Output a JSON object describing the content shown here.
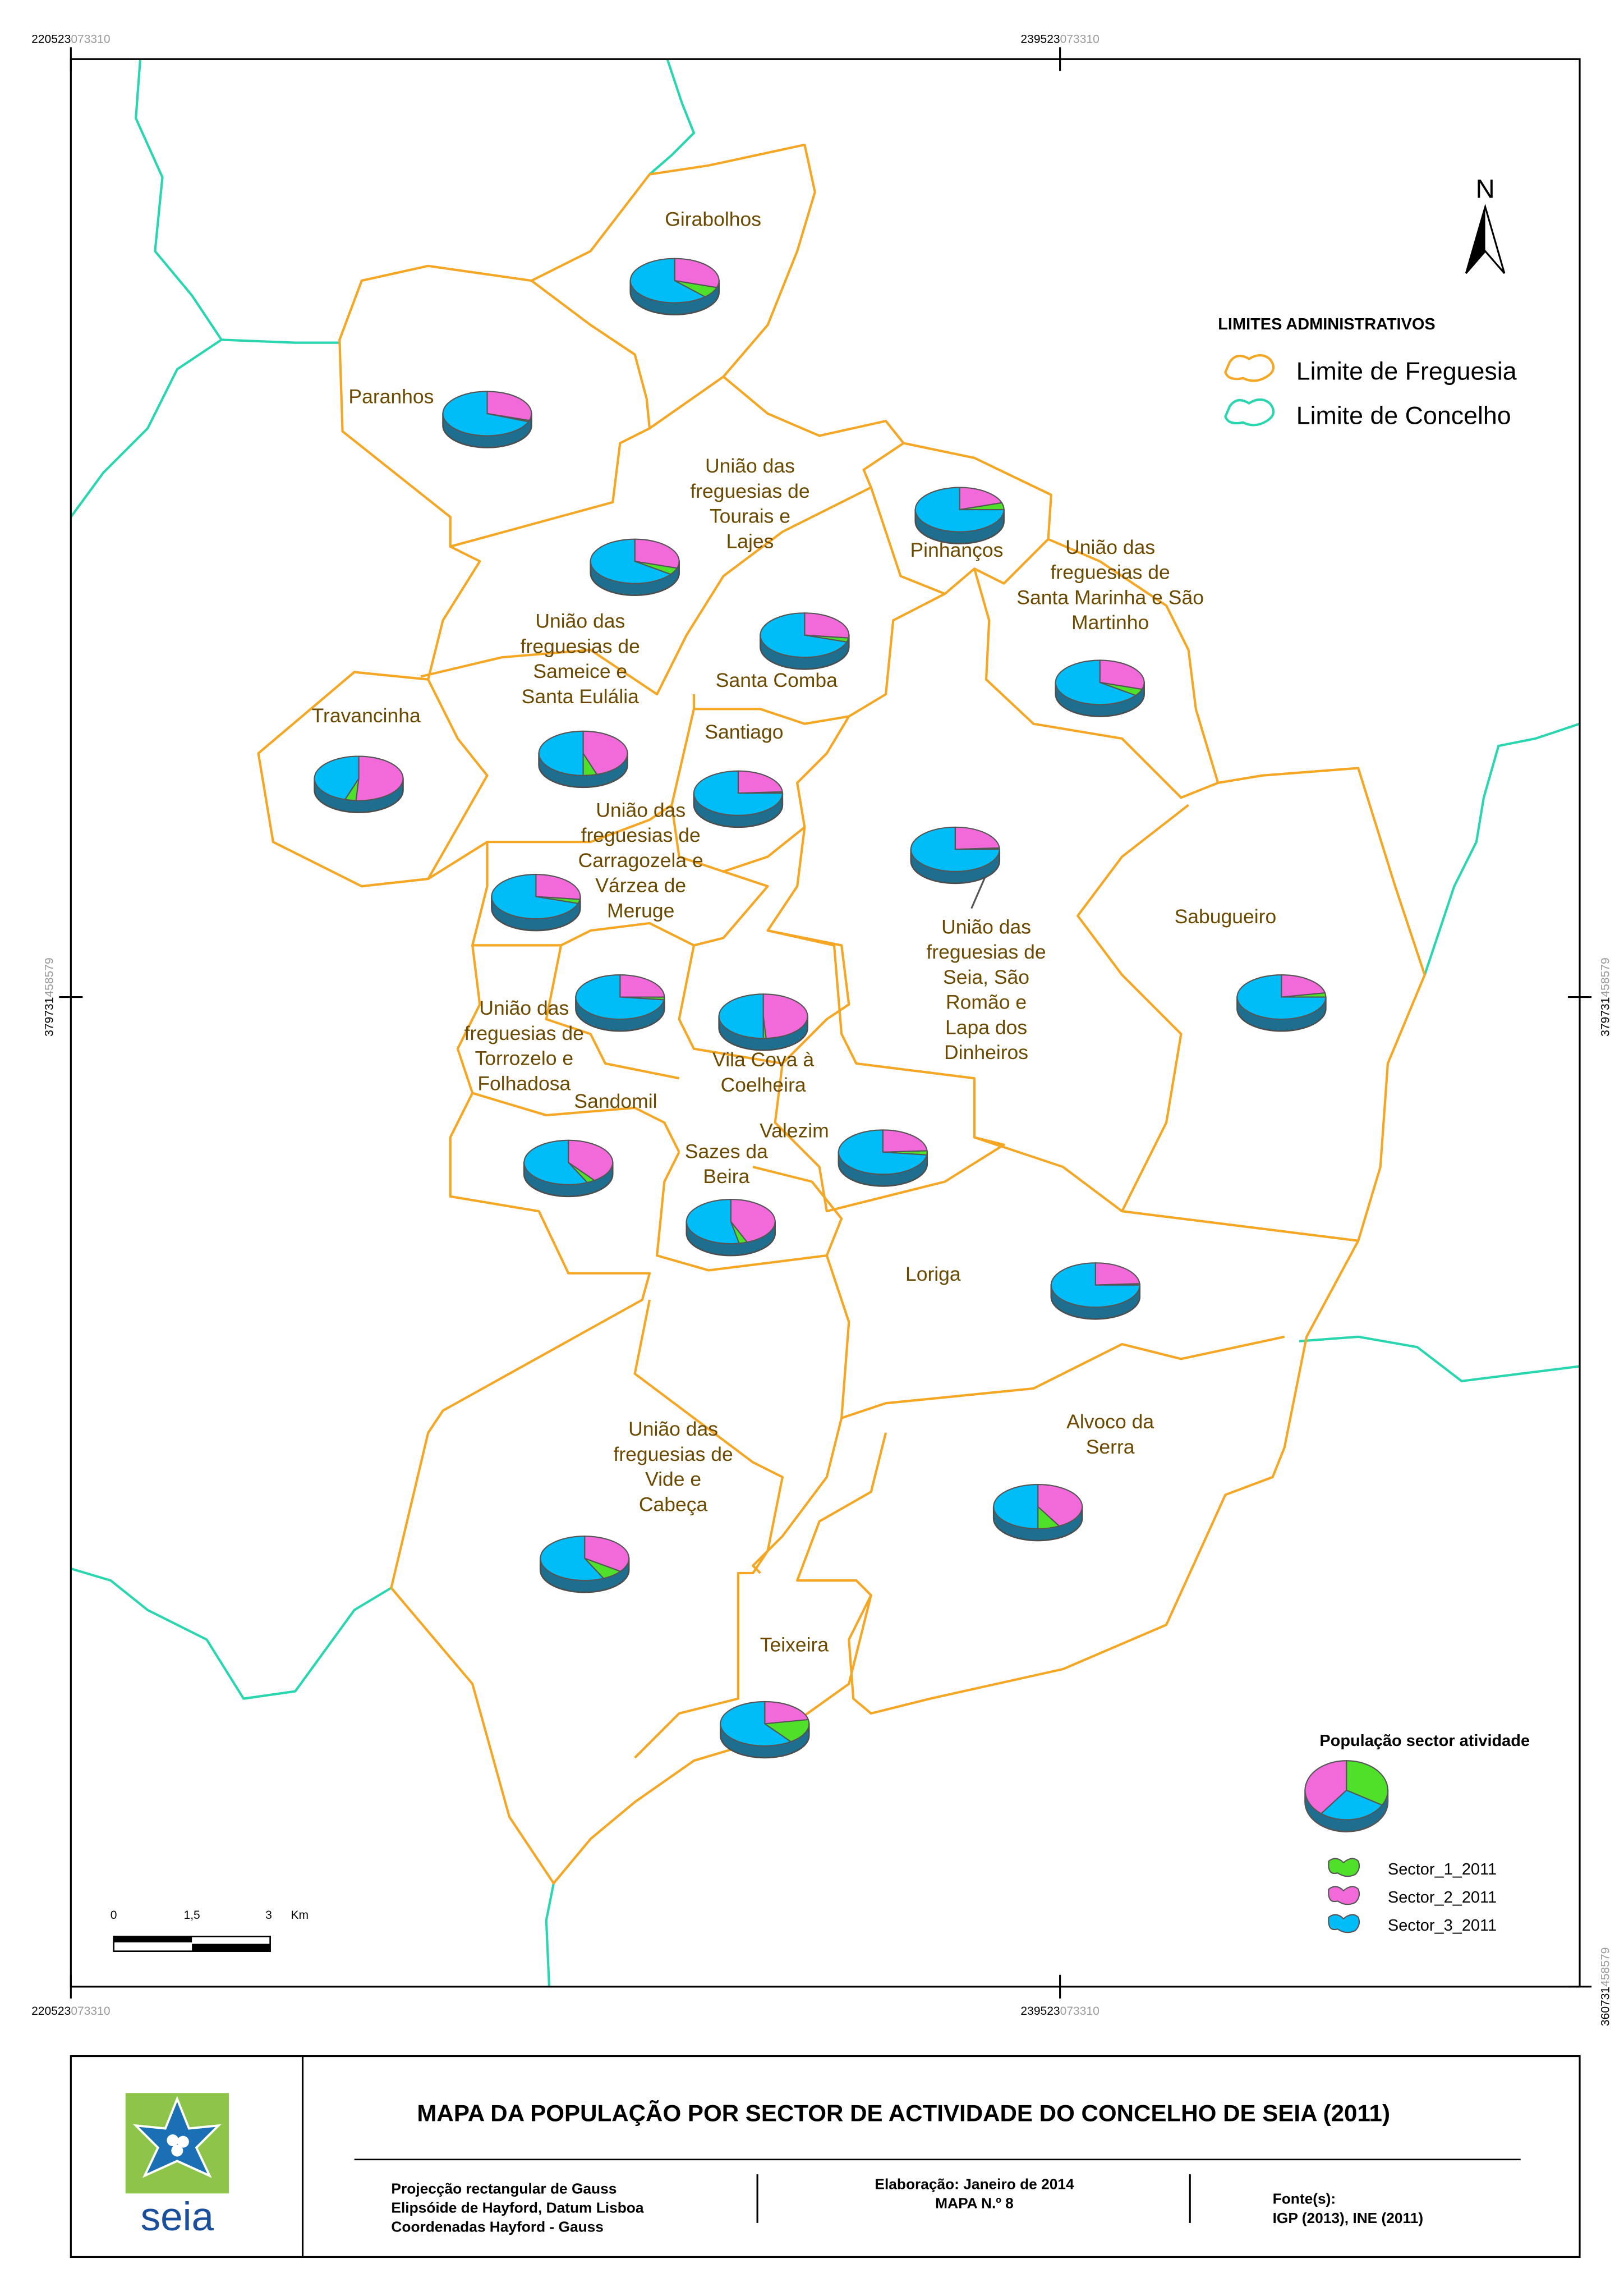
{
  "coordinates": {
    "top": [
      {
        "main": "220523",
        "fraction": "073310"
      },
      {
        "main": "239523",
        "fraction": "073310"
      }
    ],
    "bottom": [
      {
        "main": "220523",
        "fraction": "073310"
      },
      {
        "main": "239523",
        "fraction": "073310"
      }
    ],
    "left": [
      {
        "main": "379731",
        "fraction": "458579"
      }
    ],
    "right": [
      {
        "main": "379731",
        "fraction": "458579"
      },
      {
        "main": "360731",
        "fraction": "458579"
      }
    ]
  },
  "north_arrow": "N",
  "boundary_legend": {
    "title": "LIMITES ADMINISTRATIVOS",
    "items": [
      "Limite de Freguesia",
      "Limite de Concelho"
    ]
  },
  "pie_legend": {
    "title": "População sector atividade",
    "series": [
      {
        "name": "Sector_1_2011",
        "color": "#4fe02a"
      },
      {
        "name": "Sector_2_2011",
        "color": "#f26ada"
      },
      {
        "name": "Sector_3_2011",
        "color": "#00bdf7"
      }
    ]
  },
  "parishes": [
    {
      "label": [
        "Girabolhos"
      ],
      "values": [
        8,
        30,
        62
      ]
    },
    {
      "label": [
        "Paranhos"
      ],
      "values": [
        1,
        30,
        69
      ]
    },
    {
      "label": [
        "União das",
        "freguesias de",
        "Tourais e",
        "Lajes"
      ],
      "values": [
        5,
        30,
        65
      ]
    },
    {
      "label": [
        "Pinhanços"
      ],
      "values": [
        5,
        20,
        75
      ]
    },
    {
      "label": [
        "União das",
        "freguesias de",
        "Santa Marinha e São",
        "Martinho"
      ],
      "values": [
        5,
        30,
        65
      ]
    },
    {
      "label": [
        "Santa Comba"
      ],
      "values": [
        3,
        27,
        70
      ]
    },
    {
      "label": [
        "União das",
        "freguesias de",
        "Sameice e",
        "Santa Eulália"
      ],
      "values": [
        5,
        45,
        50
      ]
    },
    {
      "label": [
        "Travancinha"
      ],
      "values": [
        4,
        51,
        45
      ]
    },
    {
      "label": [
        "Santiago"
      ],
      "values": [
        1,
        24,
        75
      ]
    },
    {
      "label": [
        "União das",
        "freguesias de",
        "Seia, São",
        "Romão e",
        "Lapa dos",
        "Dinheiros"
      ],
      "values": [
        1,
        24,
        75
      ]
    },
    {
      "label": [
        "União das",
        "freguesias de",
        "Carragozela e",
        "Várzea de",
        "Meruge"
      ],
      "values": [
        3,
        27,
        70
      ]
    },
    {
      "label": [
        "Sabugueiro"
      ],
      "values": [
        3,
        22,
        75
      ]
    },
    {
      "label": [
        "União das",
        "freguesias de",
        "Torrozelo e",
        "Folhadosa"
      ],
      "values": [
        2,
        25,
        73
      ]
    },
    {
      "label": [
        "Vila Cova à",
        "Coelheira"
      ],
      "values": [
        1,
        49,
        50
      ]
    },
    {
      "label": [
        "Valezim"
      ],
      "values": [
        3,
        24,
        73
      ]
    },
    {
      "label": [
        "Sandomil"
      ],
      "values": [
        3,
        40,
        57
      ]
    },
    {
      "label": [
        "Sazes da",
        "Beira"
      ],
      "values": [
        3,
        44,
        53
      ]
    },
    {
      "label": [
        "Loriga"
      ],
      "values": [
        1,
        24,
        75
      ]
    },
    {
      "label": [
        "União das",
        "freguesias de",
        "Vide e",
        "Cabeça"
      ],
      "values": [
        8,
        35,
        57
      ]
    },
    {
      "label": [
        "Alvoco da",
        "Serra"
      ],
      "values": [
        8,
        42,
        50
      ]
    },
    {
      "label": [
        "Teixeira"
      ],
      "values": [
        18,
        22,
        60
      ]
    }
  ],
  "scale_bar": {
    "labels": [
      "0",
      "1,5",
      "3"
    ],
    "unit": "Km"
  },
  "footer": {
    "title": "MAPA DA POPULAÇÃO POR SECTOR DE ACTIVIDADE DO CONCELHO DE SEIA (2011)",
    "projection": [
      "Projecção rectangular de Gauss",
      "Elipsóide de Hayford, Datum Lisboa",
      "Coordenadas Hayford - Gauss"
    ],
    "elaboration": [
      "Elaboração: Janeiro de 2014",
      "MAPA N.º 8"
    ],
    "sources": [
      "Fonte(s):",
      "IGP (2013), INE (2011)"
    ],
    "logo": "seia"
  }
}
